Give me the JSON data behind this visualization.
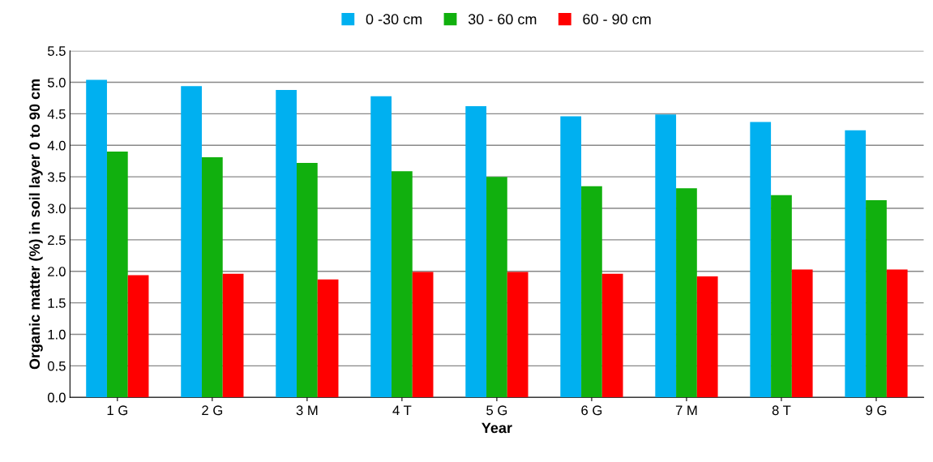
{
  "chart_data": {
    "type": "bar",
    "xlabel": "Year",
    "ylabel": "Organic matter (%) in soil layer 0 to 90 cm",
    "categories": [
      "1 G",
      "2 G",
      "3 M",
      "4 T",
      "5 G",
      "6 G",
      "7 M",
      "8 T",
      "9 G"
    ],
    "series": [
      {
        "name": "0 -30 cm",
        "color": "#00b0f0",
        "values": [
          5.04,
          4.94,
          4.88,
          4.78,
          4.62,
          4.46,
          4.49,
          4.37,
          4.24
        ]
      },
      {
        "name": "30 - 60 cm",
        "color": "#11b00e",
        "values": [
          3.9,
          3.81,
          3.72,
          3.59,
          3.5,
          3.35,
          3.32,
          3.21,
          3.13
        ]
      },
      {
        "name": "60 - 90 cm",
        "color": "#ff0000",
        "values": [
          1.94,
          1.96,
          1.87,
          1.99,
          1.99,
          1.96,
          1.92,
          2.03,
          2.03
        ]
      }
    ],
    "ylim": [
      0,
      5.5
    ],
    "yticks": [
      {
        "value": 0,
        "label": "0.0"
      },
      {
        "value": 0.5,
        "label": "0.5"
      },
      {
        "value": 1,
        "label": "1.0"
      },
      {
        "value": 1.5,
        "label": "1.5"
      },
      {
        "value": 2,
        "label": "2.0"
      },
      {
        "value": 2.5,
        "label": "2.5"
      },
      {
        "value": 3,
        "label": "3.0"
      },
      {
        "value": 3.5,
        "label": "3.5"
      },
      {
        "value": 4,
        "label": "4.0"
      },
      {
        "value": 4.5,
        "label": "4.5"
      },
      {
        "value": 5,
        "label": "5.0"
      },
      {
        "value": 5.5,
        "label": "5.5"
      }
    ],
    "grid": "y",
    "legend": "top"
  }
}
